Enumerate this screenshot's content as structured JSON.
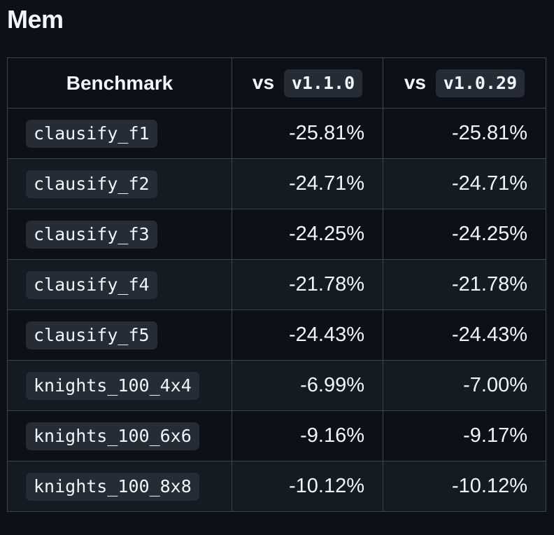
{
  "title": "Mem",
  "table": {
    "headers": {
      "benchmark": "Benchmark",
      "vs_prefix_1": "vs",
      "version_1": "v1.1.0",
      "vs_prefix_2": "vs",
      "version_2": "v1.0.29"
    },
    "rows": [
      {
        "name": "clausify_f1",
        "vs_v1_1_0": "-25.81%",
        "vs_v1_0_29": "-25.81%"
      },
      {
        "name": "clausify_f2",
        "vs_v1_1_0": "-24.71%",
        "vs_v1_0_29": "-24.71%"
      },
      {
        "name": "clausify_f3",
        "vs_v1_1_0": "-24.25%",
        "vs_v1_0_29": "-24.25%"
      },
      {
        "name": "clausify_f4",
        "vs_v1_1_0": "-21.78%",
        "vs_v1_0_29": "-21.78%"
      },
      {
        "name": "clausify_f5",
        "vs_v1_1_0": "-24.43%",
        "vs_v1_0_29": "-24.43%"
      },
      {
        "name": "knights_100_4x4",
        "vs_v1_1_0": "-6.99%",
        "vs_v1_0_29": "-7.00%"
      },
      {
        "name": "knights_100_6x6",
        "vs_v1_1_0": "-9.16%",
        "vs_v1_0_29": "-9.17%"
      },
      {
        "name": "knights_100_8x8",
        "vs_v1_1_0": "-10.12%",
        "vs_v1_0_29": "-10.12%"
      }
    ]
  }
}
